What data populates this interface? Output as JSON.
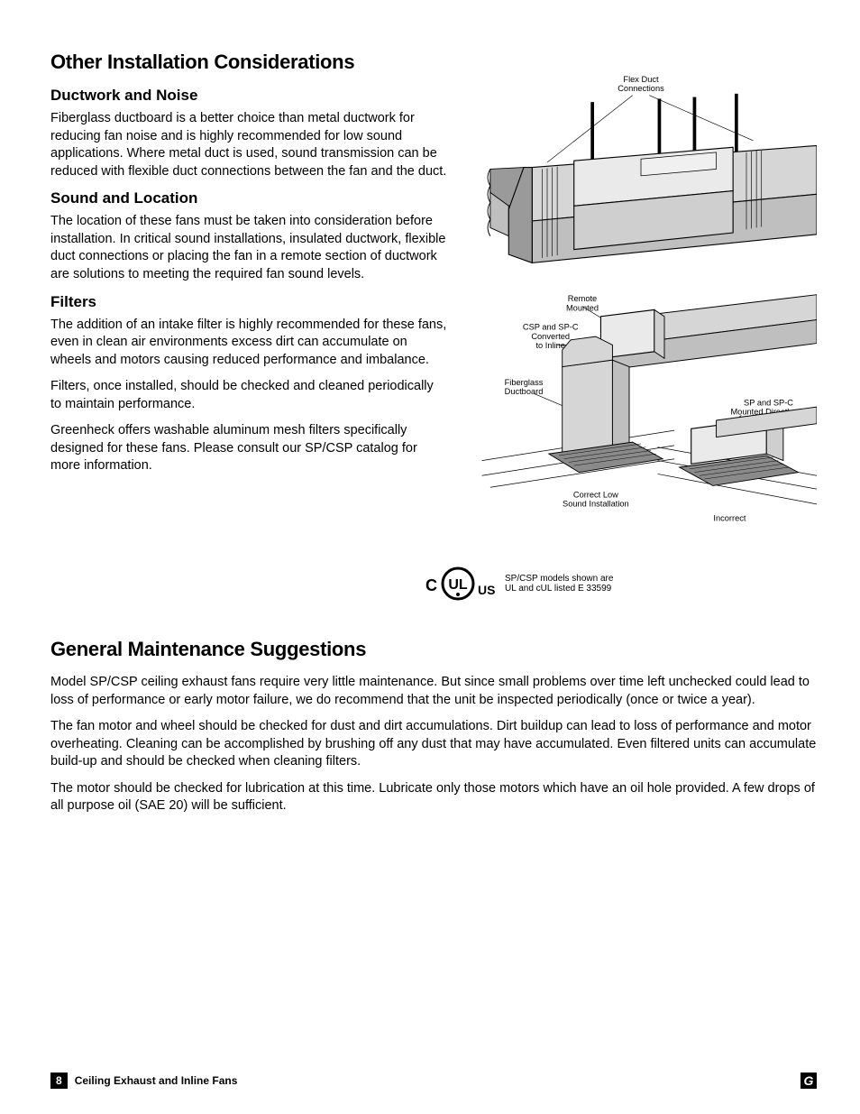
{
  "section1": {
    "title": "Other Installation Considerations",
    "sub1_title": "Ductwork and Noise",
    "sub1_p1": "Fiberglass ductboard is a better choice than metal ductwork for reducing fan noise and is highly recommended for low sound applications. Where metal duct is used, sound transmission can be reduced with flexible duct connections between the fan and the duct.",
    "sub2_title": "Sound and Location",
    "sub2_p1": "The location of these fans must be taken into consideration before installation. In critical sound installations, insulated ductwork, flexible duct connections or placing the fan in a remote section of ductwork are solutions to meeting the required fan sound levels.",
    "sub3_title": "Filters",
    "sub3_p1": "The addition of an intake filter is highly recommended for these fans, even in clean air environments excess dirt can accumulate on wheels and motors causing reduced performance and imbalance.",
    "sub3_p2": "Filters, once installed, should be checked and cleaned periodically to maintain performance.",
    "sub3_p3": "Greenheck offers washable aluminum mesh filters specifically designed for these fans. Please consult our SP/CSP catalog for more information."
  },
  "diagram": {
    "labels": {
      "flex_duct": "Flex Duct\nConnections",
      "remote": "Remote\nMounted",
      "csp_inline": "CSP and SP-C\nConverted\nto Inline",
      "fiberglass": "Fiberglass\nDuctboard",
      "sp_overhead": "SP and SP-C\nMounted Directly\nOverhead",
      "correct": "Correct Low\nSound Installation",
      "incorrect": "Incorrect"
    },
    "colors": {
      "stroke": "#000000",
      "fill_light": "#d6d6d6",
      "fill_mid": "#bfbfbf",
      "fill_dark": "#9a9a9a",
      "fill_grille": "#8a8a8a",
      "bg": "#ffffff"
    }
  },
  "ul": {
    "c": "C",
    "us": "US",
    "ul": "UL",
    "note": "SP/CSP models shown are\nUL and cUL listed E 33599"
  },
  "section2": {
    "title": "General Maintenance Suggestions",
    "p1": "Model SP/CSP ceiling exhaust fans require very little maintenance. But since small problems over time left unchecked could lead to loss of performance or early motor failure, we do recommend that the unit be inspected periodically (once or twice a year).",
    "p2": "The fan motor and wheel should be checked for dust and dirt accumulations. Dirt buildup can lead to loss of performance and motor overheating. Cleaning can be accomplished by brushing off any dust that may have accumulated. Even filtered units can accumulate build-up and should be checked when cleaning filters.",
    "p3": "The motor should be checked for lubrication at this time. Lubricate only those motors which have an oil hole provided. A few drops of all purpose oil (SAE 20) will be sufficient."
  },
  "footer": {
    "page": "8",
    "title": "Ceiling Exhaust and Inline Fans",
    "brand": "G"
  }
}
